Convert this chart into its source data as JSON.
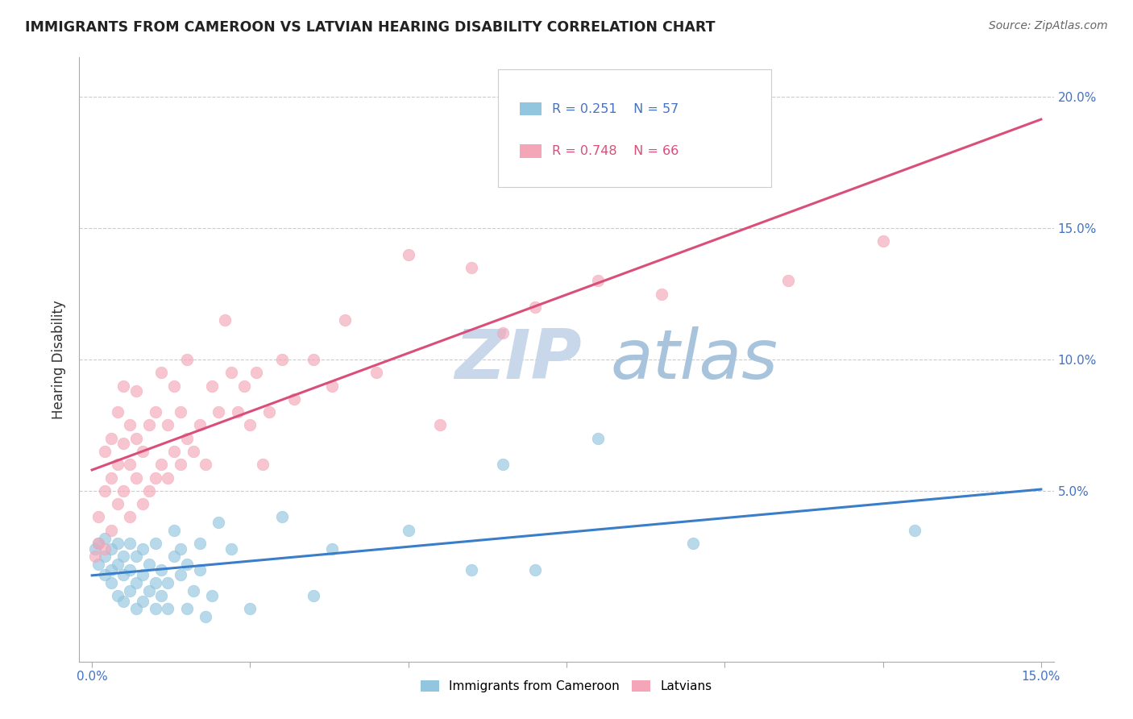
{
  "title": "IMMIGRANTS FROM CAMEROON VS LATVIAN HEARING DISABILITY CORRELATION CHART",
  "source": "Source: ZipAtlas.com",
  "ylabel": "Hearing Disability",
  "xlim": [
    -0.002,
    0.152
  ],
  "ylim": [
    -0.015,
    0.215
  ],
  "xticks": [
    0.0,
    0.025,
    0.05,
    0.075,
    0.1,
    0.125,
    0.15
  ],
  "xtick_labels": [
    "0.0%",
    "",
    "",
    "",
    "",
    "",
    "15.0%"
  ],
  "yticks": [
    0.0,
    0.05,
    0.1,
    0.15,
    0.2
  ],
  "ytick_labels": [
    "",
    "5.0%",
    "10.0%",
    "15.0%",
    "20.0%"
  ],
  "legend_r1": "R = 0.251",
  "legend_n1": "N = 57",
  "legend_r2": "R = 0.748",
  "legend_n2": "N = 66",
  "color_blue": "#92c5de",
  "color_pink": "#f4a6b8",
  "line_color_blue": "#3a7dc9",
  "line_color_pink": "#d94f7a",
  "watermark_zip": "ZIP",
  "watermark_atlas": "atlas",
  "watermark_color_zip": "#c8d8ea",
  "watermark_color_atlas": "#a8c4dc",
  "background_color": "#ffffff",
  "cameroon_points": [
    [
      0.0005,
      0.028
    ],
    [
      0.001,
      0.03
    ],
    [
      0.001,
      0.022
    ],
    [
      0.002,
      0.025
    ],
    [
      0.002,
      0.018
    ],
    [
      0.002,
      0.032
    ],
    [
      0.003,
      0.02
    ],
    [
      0.003,
      0.015
    ],
    [
      0.003,
      0.028
    ],
    [
      0.004,
      0.01
    ],
    [
      0.004,
      0.022
    ],
    [
      0.004,
      0.03
    ],
    [
      0.005,
      0.008
    ],
    [
      0.005,
      0.018
    ],
    [
      0.005,
      0.025
    ],
    [
      0.006,
      0.012
    ],
    [
      0.006,
      0.02
    ],
    [
      0.006,
      0.03
    ],
    [
      0.007,
      0.005
    ],
    [
      0.007,
      0.015
    ],
    [
      0.007,
      0.025
    ],
    [
      0.008,
      0.008
    ],
    [
      0.008,
      0.018
    ],
    [
      0.008,
      0.028
    ],
    [
      0.009,
      0.012
    ],
    [
      0.009,
      0.022
    ],
    [
      0.01,
      0.005
    ],
    [
      0.01,
      0.015
    ],
    [
      0.01,
      0.03
    ],
    [
      0.011,
      0.01
    ],
    [
      0.011,
      0.02
    ],
    [
      0.012,
      0.005
    ],
    [
      0.012,
      0.015
    ],
    [
      0.013,
      0.025
    ],
    [
      0.013,
      0.035
    ],
    [
      0.014,
      0.018
    ],
    [
      0.014,
      0.028
    ],
    [
      0.015,
      0.005
    ],
    [
      0.015,
      0.022
    ],
    [
      0.016,
      0.012
    ],
    [
      0.017,
      0.02
    ],
    [
      0.017,
      0.03
    ],
    [
      0.018,
      0.002
    ],
    [
      0.019,
      0.01
    ],
    [
      0.02,
      0.038
    ],
    [
      0.022,
      0.028
    ],
    [
      0.025,
      0.005
    ],
    [
      0.03,
      0.04
    ],
    [
      0.035,
      0.01
    ],
    [
      0.038,
      0.028
    ],
    [
      0.05,
      0.035
    ],
    [
      0.06,
      0.02
    ],
    [
      0.065,
      0.06
    ],
    [
      0.07,
      0.02
    ],
    [
      0.08,
      0.07
    ],
    [
      0.095,
      0.03
    ],
    [
      0.13,
      0.035
    ]
  ],
  "latvian_points": [
    [
      0.0005,
      0.025
    ],
    [
      0.001,
      0.03
    ],
    [
      0.001,
      0.04
    ],
    [
      0.002,
      0.028
    ],
    [
      0.002,
      0.05
    ],
    [
      0.002,
      0.065
    ],
    [
      0.003,
      0.035
    ],
    [
      0.003,
      0.055
    ],
    [
      0.003,
      0.07
    ],
    [
      0.004,
      0.045
    ],
    [
      0.004,
      0.06
    ],
    [
      0.004,
      0.08
    ],
    [
      0.005,
      0.05
    ],
    [
      0.005,
      0.068
    ],
    [
      0.005,
      0.09
    ],
    [
      0.006,
      0.04
    ],
    [
      0.006,
      0.06
    ],
    [
      0.006,
      0.075
    ],
    [
      0.007,
      0.055
    ],
    [
      0.007,
      0.07
    ],
    [
      0.007,
      0.088
    ],
    [
      0.008,
      0.045
    ],
    [
      0.008,
      0.065
    ],
    [
      0.009,
      0.05
    ],
    [
      0.009,
      0.075
    ],
    [
      0.01,
      0.055
    ],
    [
      0.01,
      0.08
    ],
    [
      0.011,
      0.06
    ],
    [
      0.011,
      0.095
    ],
    [
      0.012,
      0.055
    ],
    [
      0.012,
      0.075
    ],
    [
      0.013,
      0.065
    ],
    [
      0.013,
      0.09
    ],
    [
      0.014,
      0.06
    ],
    [
      0.014,
      0.08
    ],
    [
      0.015,
      0.07
    ],
    [
      0.015,
      0.1
    ],
    [
      0.016,
      0.065
    ],
    [
      0.017,
      0.075
    ],
    [
      0.018,
      0.06
    ],
    [
      0.019,
      0.09
    ],
    [
      0.02,
      0.08
    ],
    [
      0.021,
      0.115
    ],
    [
      0.022,
      0.095
    ],
    [
      0.023,
      0.08
    ],
    [
      0.024,
      0.09
    ],
    [
      0.025,
      0.075
    ],
    [
      0.026,
      0.095
    ],
    [
      0.027,
      0.06
    ],
    [
      0.028,
      0.08
    ],
    [
      0.03,
      0.1
    ],
    [
      0.032,
      0.085
    ],
    [
      0.035,
      0.1
    ],
    [
      0.038,
      0.09
    ],
    [
      0.04,
      0.115
    ],
    [
      0.045,
      0.095
    ],
    [
      0.05,
      0.14
    ],
    [
      0.055,
      0.075
    ],
    [
      0.06,
      0.135
    ],
    [
      0.065,
      0.11
    ],
    [
      0.07,
      0.12
    ],
    [
      0.08,
      0.13
    ],
    [
      0.09,
      0.125
    ],
    [
      0.1,
      0.175
    ],
    [
      0.11,
      0.13
    ],
    [
      0.125,
      0.145
    ]
  ]
}
